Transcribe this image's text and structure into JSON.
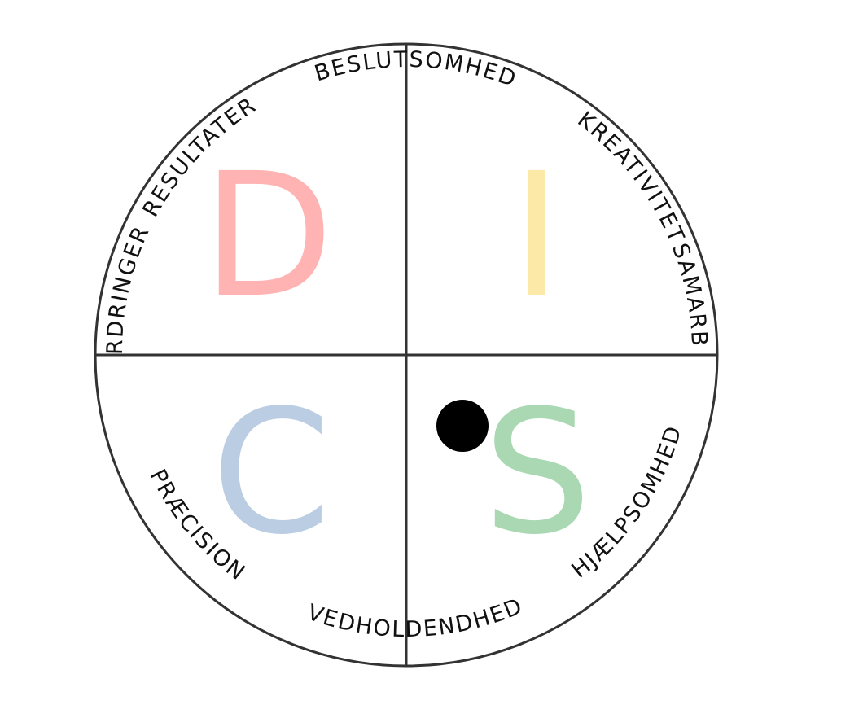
{
  "quadrants": [
    {
      "key": "D",
      "letter": "D",
      "color": "#FFB3B3"
    },
    {
      "key": "I",
      "letter": "I",
      "color": "#FCE9A8"
    },
    {
      "key": "C",
      "letter": "C",
      "color": "#BBCDE3"
    },
    {
      "key": "S",
      "letter": "S",
      "color": "#A9D8B2"
    }
  ],
  "ring_labels": [
    "BESLUTSOMHED",
    "KREATIVITET",
    "SAMARBEJDE",
    "HJÆLPSOMHED",
    "VEDHOLDENDHED",
    "PRÆCISION",
    "UDFORDRINGER",
    "RESULTATER"
  ],
  "colors": {
    "circle_stroke": "#333333",
    "marker": "#000000"
  }
}
